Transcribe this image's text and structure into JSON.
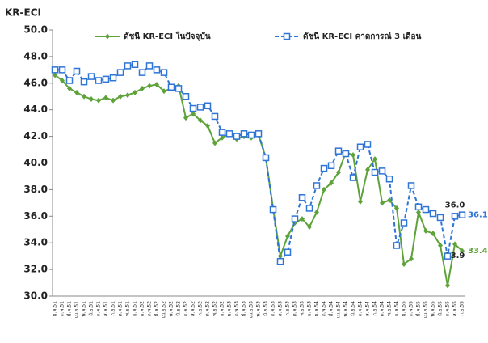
{
  "chart_data": {
    "type": "line",
    "ylabel": "KR-ECI",
    "categories": [
      "ม.ค.51",
      "ก.พ.51",
      "มี.ค.51",
      "เม.ย.51",
      "พ.ค.51",
      "มิ.ย.51",
      "ก.ค.51",
      "ส.ค.51",
      "ก.ย.51",
      "ต.ค.51",
      "พ.ย.51",
      "ธ.ค.51",
      "ม.ค.52",
      "ก.พ.52",
      "มี.ค.52",
      "เม.ย.52",
      "พ.ค.52",
      "มิ.ย.52",
      "ก.ค.52",
      "ส.ค.52",
      "ก.ย.52",
      "ต.ค.52",
      "พ.ย.52",
      "ธ.ค.52",
      "ม.ค.53",
      "ก.พ.53",
      "มี.ค.53",
      "เม.ย.53",
      "พ.ค.53",
      "มิ.ย.53",
      "ก.ค.53",
      "ส.ค.53",
      "ก.ย.53",
      "ต.ค.53",
      "พ.ย.53",
      "ธ.ค.53",
      "ม.ค.54",
      "ก.พ.54",
      "มี.ค.54",
      "เม.ย.54",
      "พ.ค.54",
      "มิ.ย.54",
      "ก.ค.54",
      "ส.ค.54",
      "ก.ย.54",
      "ต.ค.54",
      "พ.ย.54",
      "ธ.ค.54",
      "ม.ค.55",
      "ก.พ.55",
      "มี.ค.55",
      "เม.ย.55",
      "พ.ค.55",
      "มิ.ย.55",
      "ก.ค.55",
      "ส.ค.55",
      "ก.ย.55"
    ],
    "series": [
      {
        "name": "ดัชนี KR-ECI ในปัจจุบัน",
        "color": "#5ea33a",
        "marker": "diamond",
        "dashed": false,
        "values": [
          46.6,
          46.2,
          45.6,
          45.3,
          45.0,
          44.8,
          44.7,
          44.9,
          44.7,
          45.0,
          45.1,
          45.3,
          45.6,
          45.8,
          45.9,
          45.4,
          45.6,
          45.8,
          43.4,
          43.7,
          43.2,
          42.8,
          41.5,
          41.9,
          42.2,
          41.8,
          42.0,
          41.9,
          42.1,
          40.4,
          36.6,
          33.0,
          34.5,
          35.5,
          35.8,
          35.2,
          36.3,
          38.0,
          38.5,
          39.3,
          40.8,
          40.6,
          37.1,
          39.5,
          40.3,
          37.0,
          37.2,
          36.6,
          32.4,
          32.8,
          36.3,
          34.9,
          34.7,
          33.8,
          30.8,
          33.9,
          33.4
        ],
        "value_labels": [
          null,
          null,
          null,
          null,
          null,
          null,
          null,
          null,
          null,
          null,
          null,
          null,
          null,
          null,
          null,
          null,
          null,
          null,
          null,
          null,
          null,
          null,
          null,
          null,
          null,
          null,
          null,
          null,
          null,
          null,
          null,
          null,
          null,
          null,
          null,
          null,
          null,
          null,
          null,
          null,
          null,
          null,
          null,
          null,
          null,
          null,
          null,
          null,
          null,
          null,
          null,
          null,
          null,
          null,
          null,
          "33.9",
          "33.4"
        ]
      },
      {
        "name": "ดัชนี KR-ECI คาดการณ์ 3 เดือน",
        "color": "#2e75d6",
        "marker": "square",
        "dashed": true,
        "values": [
          47.0,
          47.0,
          46.2,
          46.9,
          46.1,
          46.5,
          46.2,
          46.3,
          46.4,
          46.8,
          47.3,
          47.4,
          46.8,
          47.3,
          47.0,
          46.8,
          45.7,
          45.6,
          45.0,
          44.1,
          44.2,
          44.3,
          43.5,
          42.3,
          42.2,
          42.0,
          42.2,
          42.1,
          42.2,
          40.4,
          36.5,
          32.6,
          33.3,
          35.8,
          37.4,
          36.6,
          38.3,
          39.6,
          39.8,
          40.9,
          40.7,
          38.9,
          41.2,
          41.4,
          39.3,
          39.4,
          38.8,
          33.8,
          35.5,
          38.3,
          36.7,
          36.5,
          36.2,
          35.9,
          33.0,
          36.0,
          36.1
        ],
        "value_labels": [
          null,
          null,
          null,
          null,
          null,
          null,
          null,
          null,
          null,
          null,
          null,
          null,
          null,
          null,
          null,
          null,
          null,
          null,
          null,
          null,
          null,
          null,
          null,
          null,
          null,
          null,
          null,
          null,
          null,
          null,
          null,
          null,
          null,
          null,
          null,
          null,
          null,
          null,
          null,
          null,
          null,
          null,
          null,
          null,
          null,
          null,
          null,
          null,
          null,
          null,
          null,
          null,
          null,
          null,
          null,
          "36.0",
          "36.1"
        ]
      }
    ],
    "ylim": [
      30,
      50
    ],
    "yticks": [
      {
        "value": 30,
        "label": "30.0"
      },
      {
        "value": 32,
        "label": "32.0"
      },
      {
        "value": 34,
        "label": "34.0"
      },
      {
        "value": 36,
        "label": "36.0"
      },
      {
        "value": 38,
        "label": "38.0"
      },
      {
        "value": 40,
        "label": "40.0"
      },
      {
        "value": 42,
        "label": "42.0"
      },
      {
        "value": 44,
        "label": "44.0"
      },
      {
        "value": 46,
        "label": "46.0"
      },
      {
        "value": 48,
        "label": "48.0"
      },
      {
        "value": 50,
        "label": "50.0"
      }
    ],
    "grid": false
  }
}
